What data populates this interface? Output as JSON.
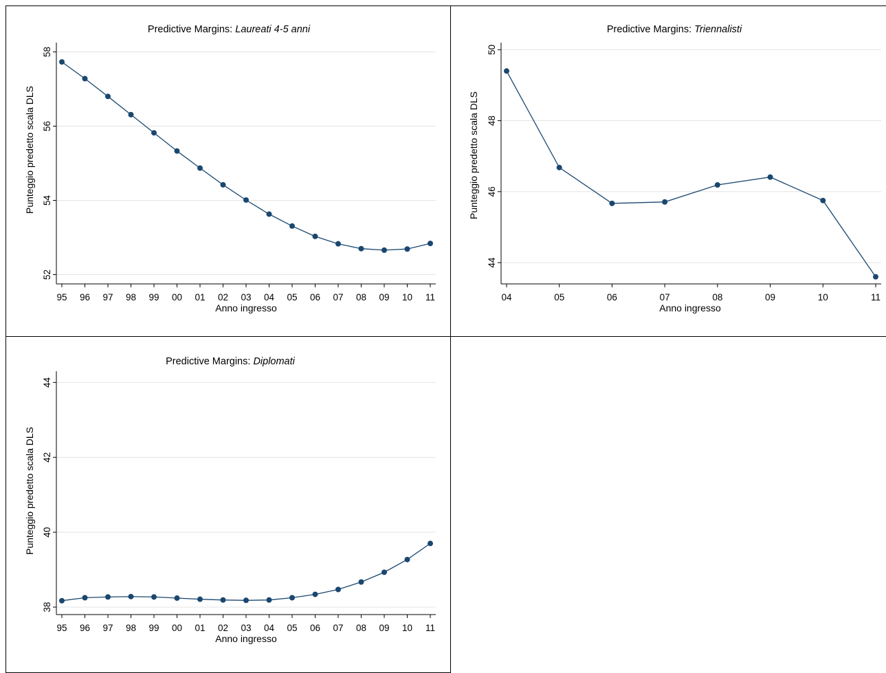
{
  "figure": {
    "panels": [
      {
        "title_prefix": "Predictive Margins: ",
        "title_group": "Laureati 4-5 anni"
      },
      {
        "title_prefix": "Predictive Margins: ",
        "title_group": "Triennalisti"
      },
      {
        "title_prefix": "Predictive Margins: ",
        "title_group": "Diplomati"
      }
    ]
  },
  "colors": {
    "series": "#1a476f",
    "grid": "#e4e4e4",
    "frame": "#000000"
  },
  "chart_data": [
    {
      "type": "line",
      "title": "Predictive Margins: Laureati 4-5 anni",
      "xlabel": "Anno ingresso",
      "ylabel": "Punteggio predetto scala DLS",
      "categories": [
        "95",
        "96",
        "97",
        "98",
        "99",
        "00",
        "01",
        "02",
        "03",
        "04",
        "05",
        "06",
        "07",
        "08",
        "09",
        "10",
        "11"
      ],
      "values": [
        57.73,
        57.28,
        56.8,
        56.31,
        55.82,
        55.33,
        54.87,
        54.42,
        54.01,
        53.63,
        53.31,
        53.03,
        52.83,
        52.7,
        52.66,
        52.69,
        52.84
      ],
      "yticks": [
        52,
        54,
        56,
        58
      ],
      "ylim": [
        51.75,
        58.25
      ],
      "grid": true
    },
    {
      "type": "line",
      "title": "Predictive Margins: Triennalisti",
      "xlabel": "Anno ingresso",
      "ylabel": "Punteggio predetto scala DLS",
      "categories": [
        "04",
        "05",
        "06",
        "07",
        "08",
        "09",
        "10",
        "11"
      ],
      "values": [
        49.4,
        46.68,
        45.67,
        45.71,
        46.19,
        46.41,
        45.75,
        43.6
      ],
      "yticks": [
        44,
        46,
        48,
        50
      ],
      "ylim": [
        43.4,
        50.2
      ],
      "grid": true
    },
    {
      "type": "line",
      "title": "Predictive Margins: Diplomati",
      "xlabel": "Anno ingresso",
      "ylabel": "Punteggio predetto scala DLS",
      "categories": [
        "95",
        "96",
        "97",
        "98",
        "99",
        "00",
        "01",
        "02",
        "03",
        "04",
        "05",
        "06",
        "07",
        "08",
        "09",
        "10",
        "11"
      ],
      "values": [
        38.17,
        38.25,
        38.27,
        38.28,
        38.27,
        38.24,
        38.21,
        38.19,
        38.18,
        38.19,
        38.25,
        38.34,
        38.47,
        38.67,
        38.93,
        39.27,
        39.7
      ],
      "yticks": [
        38,
        40,
        42,
        44
      ],
      "ylim": [
        37.8,
        44.3
      ],
      "grid": true
    }
  ]
}
